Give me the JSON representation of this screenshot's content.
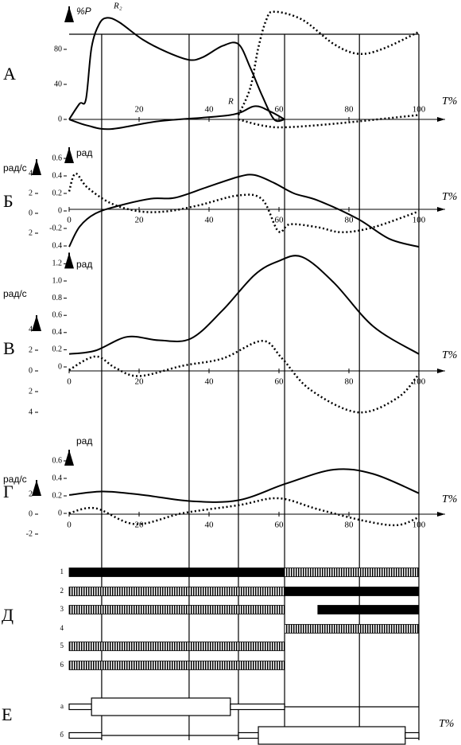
{
  "x_label": "T%",
  "phase_lines": [
    9.3,
    34.3,
    48.4,
    61.6,
    83,
    100
  ],
  "panels": [
    {
      "letter": "А",
      "y_label": "%P",
      "annotations": [
        "R₂",
        "R"
      ],
      "xticks": [
        20,
        40,
        60,
        80,
        100
      ],
      "yticks": [
        0,
        40,
        80
      ],
      "curves": [
        {
          "style": "solid",
          "x": [
            0,
            3,
            4.8,
            6.4,
            8.6,
            10.9,
            14.3,
            21.1,
            27.9,
            34.3,
            38.2,
            43.9,
            48.4,
            51.8,
            55.2,
            58.6,
            61.6
          ],
          "values": [
            0,
            18,
            23,
            82,
            109,
            116,
            111,
            91,
            77,
            68,
            71,
            84,
            86,
            59,
            27,
            0,
            0
          ]
        },
        {
          "style": "solid",
          "x": [
            0,
            5.2,
            12,
            25.7,
            46.1,
            53,
            57.5,
            61.6
          ],
          "values": [
            0,
            -7,
            -11,
            -2,
            5,
            15,
            9,
            0
          ]
        },
        {
          "style": "dotted",
          "x": [
            48.4,
            51.8,
            54.1,
            56.4,
            58.6,
            66.6,
            75.7,
            82.5,
            89.3,
            100
          ],
          "values": [
            5,
            36,
            82,
            114,
            123,
            114,
            86,
            75,
            80,
            100
          ]
        },
        {
          "style": "dotted",
          "x": [
            48.4,
            55.2,
            61.6,
            75.7,
            100
          ],
          "values": [
            0,
            -7,
            -9,
            -5,
            5
          ]
        }
      ]
    },
    {
      "letter": "Б",
      "y_label": "рад",
      "y2_label": "рад/с",
      "xticks": [
        0,
        20,
        40,
        60,
        80,
        100
      ],
      "yticks": [
        {
          "value": -0.4,
          "label": "0.4"
        },
        -0.2,
        0,
        0.2,
        0.4,
        0.6
      ],
      "y2ticks": [
        {
          "value": -2,
          "label": "2"
        },
        0,
        2,
        4
      ],
      "curves": [
        {
          "style": "solid",
          "x": [
            0,
            3,
            7.5,
            14.3,
            23.4,
            30.2,
            39.3,
            48.4,
            53,
            58.6,
            64.3,
            71.1,
            82.5,
            91.6,
            100
          ],
          "values": [
            -0.41,
            -0.18,
            -0.03,
            0.06,
            0.14,
            0.15,
            0.27,
            0.39,
            0.41,
            0.32,
            0.2,
            0.12,
            -0.09,
            -0.32,
            -0.41
          ]
        },
        {
          "style": "dotted",
          "axis": "y2",
          "x": [
            0,
            1.8,
            5.2,
            12,
            20,
            28,
            37,
            48.4,
            55.2,
            59.8,
            63.2,
            71.1,
            78,
            87,
            100
          ],
          "values": [
            2.2,
            4,
            2.6,
            1,
            0.2,
            0.2,
            0.8,
            1.8,
            1.4,
            -1.8,
            -1.1,
            -1.4,
            -1.9,
            -1.4,
            0.2
          ]
        }
      ]
    },
    {
      "letter": "В",
      "y_label": "рад",
      "y2_label": "рад/с",
      "xticks": [
        0,
        20,
        40,
        60,
        80,
        100
      ],
      "yticks": [
        0,
        0.2,
        0.4,
        0.6,
        0.8,
        {
          "value": 1,
          "label": "1.0"
        },
        1.2
      ],
      "y2ticks": [
        {
          "value": -4,
          "label": "4"
        },
        {
          "value": -2,
          "label": "2"
        },
        0,
        2,
        4
      ],
      "curves": [
        {
          "style": "solid",
          "x": [
            0,
            7.5,
            16.6,
            25.7,
            34.8,
            43.9,
            53,
            59.8,
            66.6,
            75.7,
            87,
            100
          ],
          "values": [
            0.15,
            0.19,
            0.35,
            0.31,
            0.33,
            0.66,
            1.07,
            1.23,
            1.28,
            0.98,
            0.47,
            0.15
          ]
        },
        {
          "style": "dotted",
          "axis": "y2",
          "x": [
            0,
            7.5,
            13.2,
            20,
            32.5,
            43.9,
            55.2,
            60.9,
            68.9,
            82.5,
            93.9,
            100
          ],
          "values": [
            0.1,
            1.4,
            0.3,
            -0.5,
            0.5,
            1.2,
            2.9,
            1.2,
            -1.8,
            -4,
            -2.6,
            -0.3
          ]
        }
      ]
    },
    {
      "letter": "Г",
      "y_label": "рад",
      "y2_label": "рад/с",
      "xticks": [
        0,
        20,
        40,
        60,
        80,
        100
      ],
      "yticks": [
        0,
        0.2,
        0.4,
        0.6
      ],
      "y2ticks": [
        -2,
        0,
        2
      ],
      "curves": [
        {
          "style": "solid",
          "x": [
            0,
            9.8,
            21.1,
            34.8,
            48.4,
            62,
            75.7,
            87,
            100
          ],
          "values": [
            0.21,
            0.25,
            0.21,
            0.14,
            0.15,
            0.34,
            0.5,
            0.45,
            0.23
          ]
        },
        {
          "style": "dotted",
          "axis": "y2",
          "x": [
            0,
            7.5,
            18.9,
            32.5,
            48.4,
            59.8,
            71.1,
            84.8,
            93.9,
            100
          ],
          "values": [
            0.1,
            0.6,
            -1,
            0.1,
            0.9,
            1.6,
            0.5,
            -0.7,
            -1.1,
            -0.3
          ]
        }
      ]
    }
  ],
  "muscles": {
    "letter": "Д",
    "rows": [
      {
        "label": "1",
        "segments": [
          {
            "style": "solid",
            "x": [
              0,
              61.6
            ]
          },
          {
            "style": "hatched",
            "x": [
              61.6,
              100
            ]
          }
        ]
      },
      {
        "label": "2",
        "segments": [
          {
            "style": "hatched",
            "x": [
              0,
              61.6
            ]
          },
          {
            "style": "solid",
            "x": [
              61.6,
              100
            ]
          }
        ]
      },
      {
        "label": "3",
        "segments": [
          {
            "style": "hatched",
            "x": [
              0,
              61.6
            ]
          },
          {
            "style": "solid",
            "x": [
              71.1,
              100
            ]
          }
        ]
      },
      {
        "label": "4",
        "segments": [
          {
            "style": "hatched",
            "x": [
              61.6,
              100
            ]
          }
        ]
      },
      {
        "label": "5",
        "segments": [
          {
            "style": "hatched",
            "x": [
              0,
              61.6
            ]
          }
        ]
      },
      {
        "label": "6",
        "segments": [
          {
            "style": "hatched",
            "x": [
              0,
              61.6
            ]
          }
        ]
      }
    ]
  },
  "support": {
    "letter": "Е",
    "x_label": "T%",
    "rows": [
      {
        "label": "а",
        "segments": [
          {
            "style": "thin",
            "x": [
              0,
              6.4
            ]
          },
          {
            "style": "thick",
            "x": [
              6.4,
              46.1
            ]
          },
          {
            "style": "thin",
            "x": [
              46.1,
              61.6
            ]
          },
          {
            "style": "line",
            "x": [
              61.6,
              100
            ]
          }
        ]
      },
      {
        "label": "б",
        "segments": [
          {
            "style": "thin",
            "x": [
              0,
              9.3
            ]
          },
          {
            "style": "line",
            "x": [
              9.3,
              48.4
            ]
          },
          {
            "style": "thin",
            "x": [
              48.4,
              54.1
            ]
          },
          {
            "style": "thick",
            "x": [
              54.1,
              96.1
            ]
          },
          {
            "style": "thin",
            "x": [
              96.1,
              100
            ]
          }
        ]
      }
    ]
  }
}
